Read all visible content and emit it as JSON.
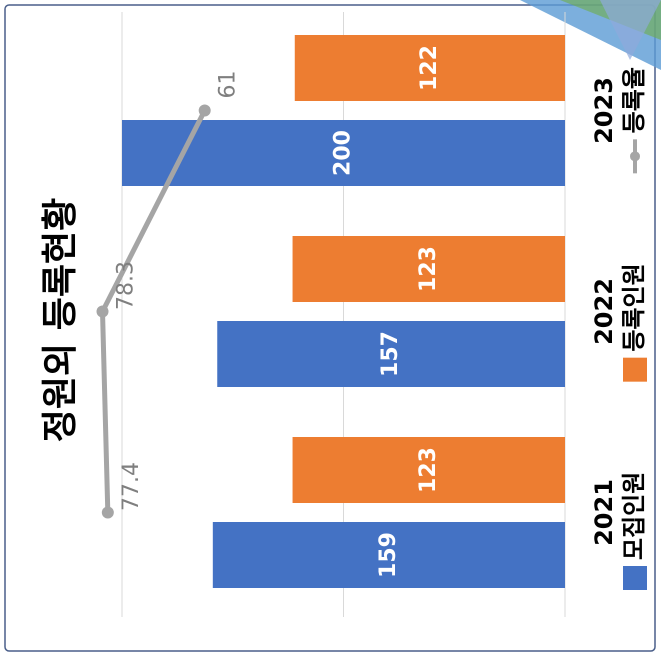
{
  "chart_data": {
    "type": "bar",
    "title": "정원외 등록현황",
    "categories": [
      "2021",
      "2022",
      "2023"
    ],
    "series": [
      {
        "name": "모집인원",
        "color": "#4472c4",
        "values": [
          159,
          157,
          200
        ]
      },
      {
        "name": "등록인원",
        "color": "#ed7d31",
        "values": [
          123,
          123,
          122
        ]
      },
      {
        "name": "등록율",
        "type": "line",
        "axis": "y2",
        "color": "#a5a5a5",
        "values": [
          77.4,
          78.3,
          61
        ]
      }
    ],
    "ylim": [
      0,
      200
    ],
    "yticks": [
      0,
      100,
      200
    ],
    "y2lim": [
      0,
      75
    ],
    "grid": true,
    "legend": "bottom"
  }
}
